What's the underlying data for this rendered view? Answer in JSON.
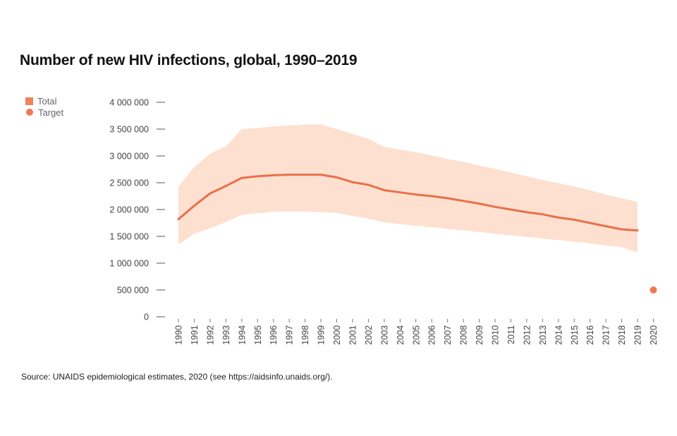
{
  "chart_data": {
    "type": "area",
    "title": "Number of new HIV infections, global, 1990–2019",
    "xlabel": "",
    "ylabel": "",
    "ylim": [
      0,
      4000000
    ],
    "y_ticks": [
      "4 000 000",
      "3 500 000",
      "3 000 000",
      "2 500 000",
      "2 000 000",
      "1 500 000",
      "1 000 000",
      "500 000",
      "0"
    ],
    "x": [
      1990,
      1991,
      1992,
      1993,
      1994,
      1995,
      1996,
      1997,
      1998,
      1999,
      2000,
      2001,
      2002,
      2003,
      2004,
      2005,
      2006,
      2007,
      2008,
      2009,
      2010,
      2011,
      2012,
      2013,
      2014,
      2015,
      2016,
      2017,
      2018,
      2019
    ],
    "x_tick_labels": [
      "1990",
      "1991",
      "1992",
      "1993",
      "1994",
      "1995",
      "1996",
      "1997",
      "1998",
      "1999",
      "2000",
      "2001",
      "2002",
      "2003",
      "2004",
      "2005",
      "2006",
      "2007",
      "2008",
      "2009",
      "2010",
      "2011",
      "2012",
      "2013",
      "2014",
      "2015",
      "2016",
      "2017",
      "2018",
      "2019",
      "2020"
    ],
    "series": [
      {
        "name": "Total",
        "color": "#e8704a",
        "values": [
          1820000,
          2070000,
          2300000,
          2440000,
          2590000,
          2620000,
          2640000,
          2650000,
          2650000,
          2650000,
          2600000,
          2510000,
          2460000,
          2360000,
          2320000,
          2280000,
          2250000,
          2210000,
          2160000,
          2110000,
          2050000,
          2000000,
          1950000,
          1910000,
          1850000,
          1810000,
          1750000,
          1690000,
          1630000,
          1610000
        ],
        "lower": [
          1350000,
          1550000,
          1650000,
          1770000,
          1900000,
          1930000,
          1960000,
          1960000,
          1960000,
          1950000,
          1940000,
          1880000,
          1830000,
          1760000,
          1730000,
          1700000,
          1670000,
          1640000,
          1610000,
          1580000,
          1550000,
          1520000,
          1490000,
          1460000,
          1430000,
          1400000,
          1370000,
          1330000,
          1300000,
          1200000
        ],
        "upper": [
          2430000,
          2790000,
          3040000,
          3180000,
          3500000,
          3520000,
          3550000,
          3570000,
          3580000,
          3590000,
          3500000,
          3410000,
          3320000,
          3170000,
          3120000,
          3070000,
          3010000,
          2940000,
          2890000,
          2820000,
          2760000,
          2690000,
          2620000,
          2550000,
          2490000,
          2430000,
          2360000,
          2280000,
          2210000,
          2140000
        ],
        "band_color": "#fde0d0"
      },
      {
        "name": "Target",
        "color": "#ef7a51",
        "points": [
          {
            "x": 2020,
            "y": 500000
          }
        ]
      }
    ],
    "legend_position": "top-left",
    "grid": false
  },
  "source": "Source: UNAIDS epidemiological estimates, 2020 (see https://aidsinfo.unaids.org/)."
}
